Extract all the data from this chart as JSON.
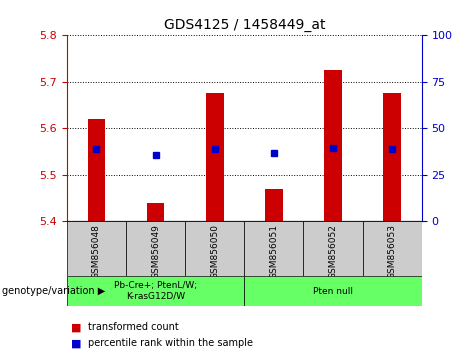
{
  "title": "GDS4125 / 1458449_at",
  "samples": [
    "GSM856048",
    "GSM856049",
    "GSM856050",
    "GSM856051",
    "GSM856052",
    "GSM856053"
  ],
  "bar_tops": [
    5.62,
    5.44,
    5.675,
    5.47,
    5.725,
    5.675
  ],
  "bar_bottoms": [
    5.4,
    5.4,
    5.4,
    5.4,
    5.4,
    5.4
  ],
  "blue_dots": [
    5.555,
    5.542,
    5.555,
    5.547,
    5.557,
    5.555
  ],
  "ylim_left": [
    5.4,
    5.8
  ],
  "ylim_right": [
    0,
    100
  ],
  "yticks_left": [
    5.4,
    5.5,
    5.6,
    5.7,
    5.8
  ],
  "yticks_right": [
    0,
    25,
    50,
    75,
    100
  ],
  "bar_color": "#cc0000",
  "dot_color": "#0000cc",
  "groups": [
    {
      "label": "Pb-Cre+; PtenL/W;\nK-rasG12D/W",
      "ncols": 3,
      "color": "#66ff66"
    },
    {
      "label": "Pten null",
      "ncols": 3,
      "color": "#66ff66"
    }
  ],
  "group_label": "genotype/variation",
  "legend_items": [
    {
      "label": "transformed count",
      "color": "#cc0000"
    },
    {
      "label": "percentile rank within the sample",
      "color": "#0000cc"
    }
  ],
  "sample_area_color": "#cccccc",
  "left_axis_color": "#cc0000",
  "right_axis_color": "#0000cc",
  "bar_width": 0.3
}
